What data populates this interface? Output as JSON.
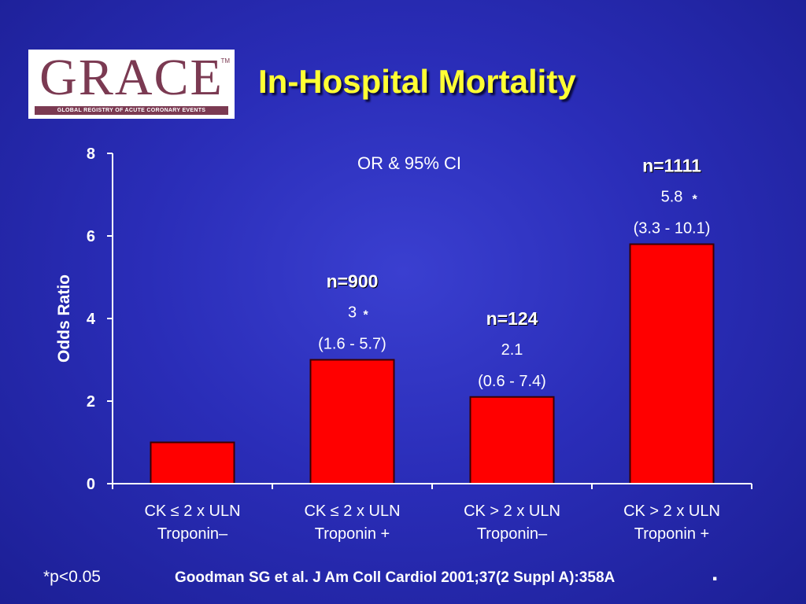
{
  "logo": {
    "word": "GRACE",
    "tm": "TM",
    "tagline": "GLOBAL REGISTRY OF ACUTE CORONARY EVENTS"
  },
  "title": "In-Hospital Mortality",
  "footnote": "*p<0.05",
  "citation": {
    "author": "Goodman SG",
    "rest": " et al. J Am Coll Cardiol 2001;37(2 Suppl A):358A",
    "dot": "."
  },
  "colors": {
    "bar": "#ff0000",
    "bar_edge": "#3a0000",
    "title": "#ffff33",
    "axis": "#ffffff"
  },
  "chart_data": {
    "type": "bar",
    "annotation": "OR & 95% CI",
    "ylabel": "Odds Ratio",
    "xlabel": "",
    "ylim": [
      0,
      8
    ],
    "yticks": [
      0,
      2,
      4,
      6,
      8
    ],
    "grid": false,
    "categories": [
      [
        "CK ≤ 2 x ULN",
        "Troponin–"
      ],
      [
        "CK ≤ 2 x ULN",
        "Troponin +"
      ],
      [
        "CK > 2 x ULN",
        "Troponin–"
      ],
      [
        "CK > 2 x ULN",
        "Troponin +"
      ]
    ],
    "values": [
      1,
      3,
      2.1,
      5.8
    ],
    "labels": [
      null,
      {
        "n": "n=900",
        "value": "3",
        "star": "*",
        "ci": "(1.6 - 5.7)"
      },
      {
        "n": "n=124",
        "value": "2.1",
        "star": "",
        "ci": "(0.6 - 7.4)"
      },
      {
        "n": "n=1111",
        "value": "5.8",
        "star": "*",
        "ci": "(3.3 - 10.1)"
      }
    ]
  }
}
